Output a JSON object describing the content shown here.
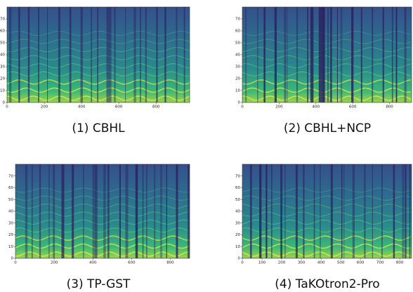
{
  "chart_data": [
    {
      "type": "heatmap",
      "caption": "(1) CBHL",
      "xlim": [
        0,
        980
      ],
      "ylim": [
        0,
        80
      ],
      "xticks": [
        0,
        200,
        400,
        600,
        800
      ],
      "yticks": [
        0,
        10,
        20,
        30,
        40,
        50,
        60,
        70
      ]
    },
    {
      "type": "heatmap",
      "caption": "(2) CBHL+NCP",
      "xlim": [
        0,
        920
      ],
      "ylim": [
        0,
        80
      ],
      "xticks": [
        0,
        200,
        400,
        600,
        800
      ],
      "yticks": [
        0,
        10,
        20,
        30,
        40,
        50,
        60,
        70
      ]
    },
    {
      "type": "heatmap",
      "caption": "(3) TP-GST",
      "xlim": [
        0,
        900
      ],
      "ylim": [
        0,
        80
      ],
      "xticks": [
        0,
        200,
        400,
        600,
        800
      ],
      "yticks": [
        0,
        10,
        20,
        30,
        40,
        50,
        60,
        70
      ]
    },
    {
      "type": "heatmap",
      "caption": "(4) TaKOtron2-Pro",
      "xlim": [
        0,
        860
      ],
      "ylim": [
        0,
        80
      ],
      "xticks": [
        0,
        100,
        200,
        300,
        400,
        500,
        600,
        700,
        800
      ],
      "yticks": [
        0,
        10,
        20,
        30,
        40,
        50,
        60,
        70
      ]
    }
  ]
}
